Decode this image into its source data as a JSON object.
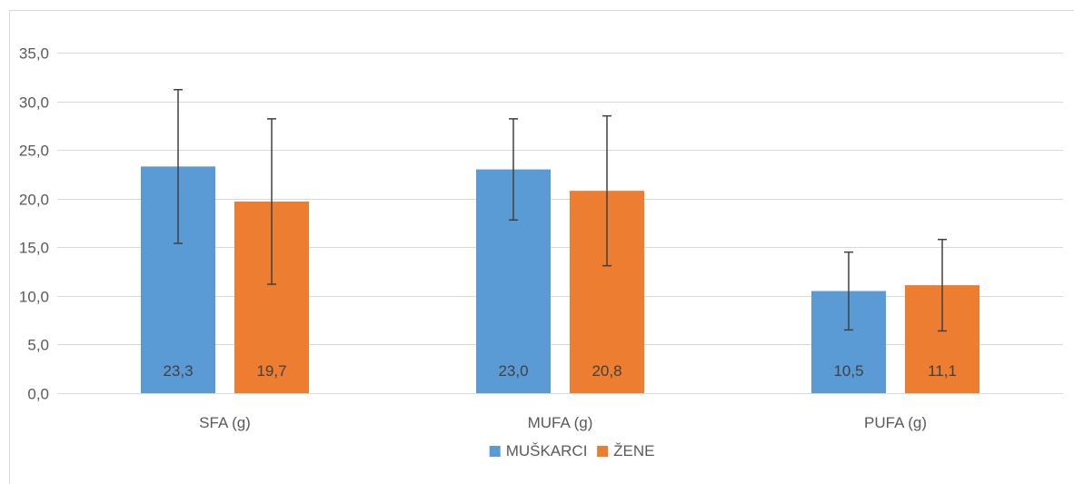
{
  "chart_data": {
    "type": "bar",
    "title": "",
    "xlabel": "",
    "ylabel": "",
    "categories": [
      "SFA (g)",
      "MUFA (g)",
      "PUFA (g)"
    ],
    "series": [
      {
        "name": "MUŠKARCI",
        "color": "#5b9bd5",
        "values": [
          23.3,
          23.0,
          10.5
        ],
        "error": [
          7.9,
          5.2,
          4.0
        ],
        "labels": [
          "23,3",
          "23,0",
          "10,5"
        ]
      },
      {
        "name": "ŽENE",
        "color": "#ed7d31",
        "values": [
          19.7,
          20.8,
          11.1
        ],
        "error": [
          8.5,
          7.7,
          4.7
        ],
        "labels": [
          "19,7",
          "20,8",
          "11,1"
        ]
      }
    ],
    "ylim": [
      0,
      35
    ],
    "yticks": [
      0,
      5,
      10,
      15,
      20,
      25,
      30,
      35
    ],
    "ytick_labels": [
      "0,0",
      "5,0",
      "10,0",
      "15,0",
      "20,0",
      "25,0",
      "30,0",
      "35,0"
    ],
    "grid": true,
    "legend_position": "bottom",
    "gridline_color": "#d9d9d9",
    "error_bar_color": "#404040"
  }
}
